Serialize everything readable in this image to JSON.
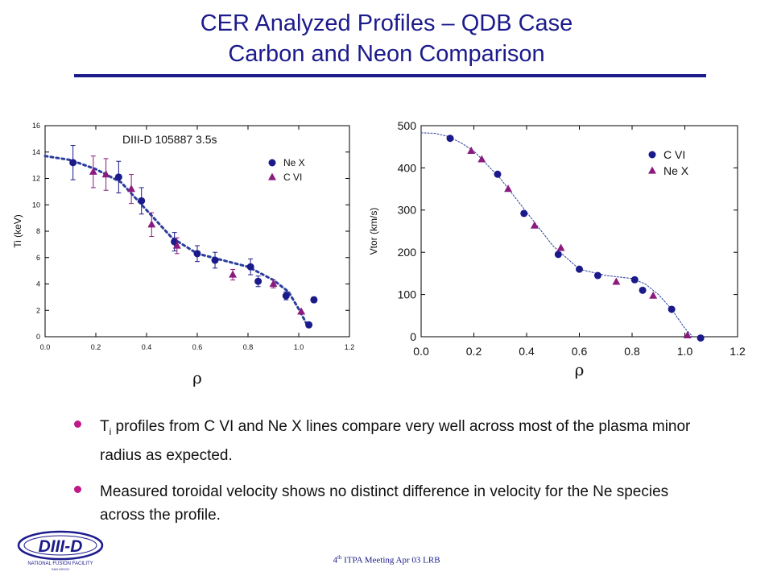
{
  "slide": {
    "title_line1": "CER Analyzed Profiles – QDB  Case",
    "title_line2": "Carbon and Neon Comparison",
    "footer_sup": "th",
    "footer_pre": "4",
    "footer_post": " ITPA Meeting  Apr 03  LRB",
    "logo_text": "DIII-D",
    "logo_sub": "NATIONAL FUSION FACILITY",
    "logo_sub2": "SAN DIEGO",
    "bullets": [
      {
        "main_pre": "T",
        "main_sub": "i",
        "main_post": " profiles from C VI and Ne X lines compare very well across most of the plasma minor radius as expected."
      },
      {
        "main_pre": "Measured toroidal velocity shows no distinct difference in velocity for the Ne species across the profile.",
        "main_sub": "",
        "main_post": ""
      }
    ],
    "colors": {
      "title": "#1c1b8c",
      "circle": "#1a1a8a",
      "triangle": "#8b1a7e",
      "bullet": "#c0188a"
    }
  },
  "chart_data": [
    {
      "type": "scatter",
      "annotation": "DIII-D  105887 3.5s",
      "xlabel": "ρ",
      "ylabel": "Ti (keV)",
      "xlim": [
        0,
        1.2
      ],
      "ylim": [
        0,
        16
      ],
      "xticks": [
        "0.0",
        "0.2",
        "0.4",
        "0.6",
        "0.8",
        "1.0",
        "1.2"
      ],
      "yticks": [
        "0",
        "2",
        "4",
        "6",
        "8",
        "10",
        "12",
        "14",
        "16"
      ],
      "legend_position": "top-right",
      "series": [
        {
          "name": "Ne X",
          "marker": "circle",
          "x": [
            0.11,
            0.29,
            0.38,
            0.51,
            0.6,
            0.67,
            0.81,
            0.84,
            0.95,
            1.04,
            1.06
          ],
          "y": [
            13.2,
            12.1,
            10.3,
            7.2,
            6.3,
            5.8,
            5.3,
            4.2,
            3.1,
            0.9,
            2.8
          ],
          "err": [
            1.3,
            1.2,
            1.0,
            0.7,
            0.6,
            0.6,
            0.6,
            0.4,
            0.3,
            0,
            0.2
          ]
        },
        {
          "name": "C VI",
          "marker": "triangle",
          "x": [
            0.19,
            0.24,
            0.34,
            0.42,
            0.52,
            0.74,
            0.9,
            1.01
          ],
          "y": [
            12.5,
            12.3,
            11.2,
            8.5,
            6.9,
            4.7,
            4.0,
            1.9
          ],
          "err": [
            1.2,
            1.2,
            1.1,
            0.9,
            0.6,
            0.4,
            0.3,
            0
          ]
        }
      ],
      "fit": {
        "x": [
          0.0,
          0.1,
          0.2,
          0.3,
          0.4,
          0.5,
          0.6,
          0.7,
          0.8,
          0.9,
          0.96,
          1.0,
          1.03
        ],
        "y": [
          13.7,
          13.4,
          12.7,
          11.7,
          9.6,
          7.5,
          6.3,
          5.8,
          5.3,
          4.3,
          3.4,
          2.1,
          1.0
        ]
      }
    },
    {
      "type": "scatter",
      "xlabel": "ρ",
      "ylabel": "Vtor (km/s)",
      "xlim": [
        0,
        1.2
      ],
      "ylim": [
        0,
        500
      ],
      "xticks": [
        "0.0",
        "0.2",
        "0.4",
        "0.6",
        "0.8",
        "1.0",
        "1.2"
      ],
      "yticks": [
        "0",
        "100",
        "200",
        "300",
        "400",
        "500"
      ],
      "legend_position": "top-right",
      "series": [
        {
          "name": "C VI",
          "marker": "circle",
          "x": [
            0.11,
            0.29,
            0.39,
            0.52,
            0.6,
            0.67,
            0.81,
            0.84,
            0.95,
            1.06
          ],
          "y": [
            470,
            385,
            292,
            195,
            160,
            145,
            135,
            110,
            65,
            -3
          ]
        },
        {
          "name": "Ne X",
          "marker": "triangle",
          "x": [
            0.19,
            0.23,
            0.33,
            0.43,
            0.53,
            0.74,
            0.88,
            1.01
          ],
          "y": [
            440,
            420,
            350,
            263,
            210,
            130,
            97,
            3
          ]
        }
      ],
      "fit": {
        "x": [
          0.0,
          0.05,
          0.1,
          0.15,
          0.2,
          0.3,
          0.4,
          0.5,
          0.6,
          0.7,
          0.8,
          0.85,
          0.9,
          0.95,
          1.0,
          1.03
        ],
        "y": [
          483,
          482,
          475,
          460,
          440,
          375,
          295,
          215,
          160,
          145,
          138,
          125,
          100,
          65,
          20,
          0
        ]
      }
    }
  ]
}
